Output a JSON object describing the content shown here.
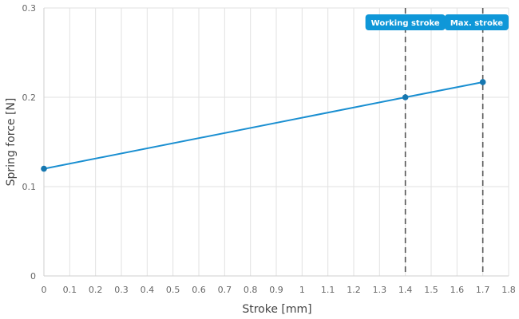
{
  "chart_data": {
    "type": "line",
    "xlabel": "Stroke [mm]",
    "ylabel": "Spring force [N]",
    "xlim": [
      0,
      1.8
    ],
    "ylim": [
      0,
      0.3
    ],
    "x_ticks": [
      0,
      0.1,
      0.2,
      0.3,
      0.4,
      0.5,
      0.6,
      0.7,
      0.8,
      0.9,
      1,
      1.1,
      1.2,
      1.3,
      1.4,
      1.5,
      1.6,
      1.7,
      1.8
    ],
    "x_tick_labels": [
      "0",
      "0.1",
      "0.2",
      "0.3",
      "0.4",
      "0.5",
      "0.6",
      "0.7",
      "0.8",
      "0.9",
      "1",
      "1.1",
      "1.2",
      "1.3",
      "1.4",
      "1.5",
      "1.6",
      "1.7",
      "1.8"
    ],
    "y_ticks": [
      0,
      0.1,
      0.2,
      0.3
    ],
    "y_tick_labels": [
      "0",
      "0.1",
      "0.2",
      "0.3"
    ],
    "grid": true,
    "series": [
      {
        "color": "#1a8fd1",
        "points": [
          {
            "x": 0,
            "y": 0.12
          },
          {
            "x": 1.4,
            "y": 0.2
          },
          {
            "x": 1.7,
            "y": 0.217
          }
        ]
      }
    ],
    "reference_lines": [
      {
        "x": 1.4,
        "label": "Working stroke"
      },
      {
        "x": 1.7,
        "label": "Max. stroke"
      }
    ],
    "colors": {
      "line": "#1a8fd1",
      "marker": "#1677b0",
      "badge": "#0f97d8",
      "reference_line": "#555555"
    }
  }
}
